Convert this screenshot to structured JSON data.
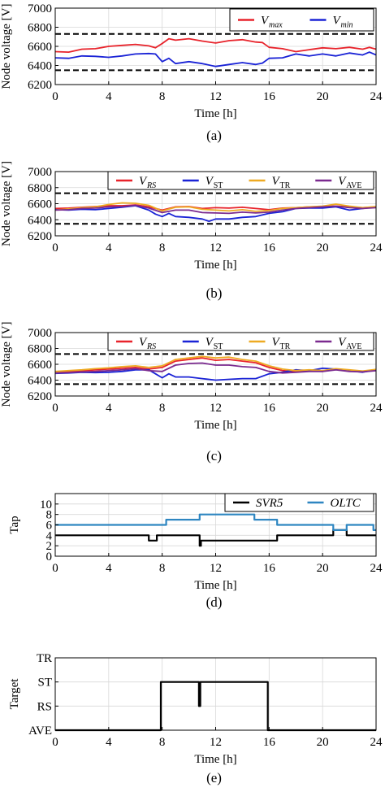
{
  "chart_data": [
    {
      "type": "line",
      "panel_label": "(a)",
      "xlabel": "Time [h]",
      "ylabel": "Node voltage [V]",
      "xlim": [
        0,
        24
      ],
      "ylim": [
        6200,
        7000
      ],
      "xticks": [
        "0",
        "4",
        "8",
        "12",
        "16",
        "20",
        "24"
      ],
      "yticks": [
        "6200",
        "6400",
        "6600",
        "6800",
        "7000"
      ],
      "reference_lines": [
        6730,
        6350
      ],
      "legend_placement": "top-right",
      "series": [
        {
          "name": "V",
          "subscript": "max",
          "color": "#e8232b",
          "x": [
            0,
            1,
            2,
            3,
            4,
            5,
            6,
            7,
            7.5,
            8,
            8.5,
            9,
            10,
            11,
            12,
            13,
            14,
            15,
            15.5,
            16,
            17,
            18,
            19,
            20,
            21,
            22,
            23,
            23.5,
            24
          ],
          "y": [
            6545,
            6540,
            6570,
            6575,
            6600,
            6610,
            6620,
            6605,
            6585,
            6630,
            6680,
            6665,
            6680,
            6655,
            6635,
            6660,
            6670,
            6645,
            6640,
            6590,
            6575,
            6545,
            6565,
            6585,
            6575,
            6590,
            6570,
            6590,
            6570
          ]
        },
        {
          "name": "V",
          "subscript": "min",
          "color": "#1a23d6",
          "x": [
            0,
            1,
            2,
            3,
            4,
            5,
            6,
            7,
            7.5,
            8,
            8.5,
            9,
            10,
            11,
            12,
            13,
            14,
            15,
            15.5,
            16,
            17,
            18,
            19,
            20,
            21,
            22,
            23,
            23.5,
            24
          ],
          "y": [
            6480,
            6475,
            6500,
            6495,
            6485,
            6500,
            6520,
            6525,
            6520,
            6440,
            6475,
            6420,
            6440,
            6420,
            6390,
            6410,
            6430,
            6410,
            6425,
            6475,
            6480,
            6520,
            6500,
            6520,
            6500,
            6530,
            6510,
            6540,
            6510
          ]
        }
      ]
    },
    {
      "type": "line",
      "panel_label": "(b)",
      "xlabel": "Time [h]",
      "ylabel": "Node voltage [V]",
      "xlim": [
        0,
        24
      ],
      "ylim": [
        6200,
        7000
      ],
      "xticks": [
        "0",
        "4",
        "8",
        "12",
        "16",
        "20",
        "24"
      ],
      "yticks": [
        "6200",
        "6400",
        "6600",
        "6800",
        "7000"
      ],
      "reference_lines": [
        6730,
        6350
      ],
      "legend_placement": "top",
      "series": [
        {
          "name": "V",
          "subscript": "RS",
          "color": "#e8232b",
          "x": [
            0,
            1,
            2,
            3,
            4,
            5,
            6,
            7,
            8,
            9,
            10,
            11,
            12,
            13,
            14,
            15,
            16,
            17,
            18,
            19,
            20,
            21,
            22,
            23,
            24
          ],
          "y": [
            6540,
            6545,
            6555,
            6565,
            6575,
            6575,
            6585,
            6560,
            6520,
            6560,
            6565,
            6540,
            6550,
            6545,
            6555,
            6540,
            6525,
            6545,
            6550,
            6560,
            6565,
            6570,
            6560,
            6550,
            6560
          ]
        },
        {
          "name": "V",
          "subscript": "ST",
          "color": "#1a23d6",
          "x": [
            0,
            1,
            2,
            3,
            4,
            5,
            6,
            7,
            7.5,
            8,
            8.5,
            9,
            10,
            11,
            11.5,
            12,
            13,
            14,
            15,
            16,
            17,
            18,
            19,
            20,
            21,
            22,
            23,
            24
          ],
          "y": [
            6525,
            6520,
            6530,
            6525,
            6540,
            6555,
            6575,
            6520,
            6470,
            6440,
            6480,
            6440,
            6430,
            6410,
            6380,
            6410,
            6410,
            6430,
            6440,
            6480,
            6500,
            6540,
            6545,
            6545,
            6560,
            6520,
            6540,
            6560
          ]
        },
        {
          "name": "V",
          "subscript": "TR",
          "color": "#eeaa22",
          "x": [
            0,
            1,
            2,
            3,
            4,
            5,
            6,
            7,
            8,
            9,
            10,
            11,
            12,
            13,
            14,
            15,
            16,
            17,
            18,
            19,
            20,
            21,
            22,
            23,
            24
          ],
          "y": [
            6520,
            6535,
            6550,
            6560,
            6590,
            6610,
            6605,
            6580,
            6510,
            6555,
            6560,
            6530,
            6520,
            6510,
            6525,
            6505,
            6515,
            6540,
            6550,
            6560,
            6570,
            6595,
            6570,
            6550,
            6565
          ]
        },
        {
          "name": "V",
          "subscript": "AVE",
          "color": "#7b2a8f",
          "x": [
            0,
            1,
            2,
            3,
            4,
            5,
            6,
            7,
            8,
            9,
            10,
            11,
            12,
            13,
            14,
            15,
            16,
            17,
            18,
            19,
            20,
            21,
            22,
            23,
            24
          ],
          "y": [
            6520,
            6525,
            6540,
            6545,
            6560,
            6565,
            6580,
            6545,
            6490,
            6520,
            6520,
            6490,
            6485,
            6480,
            6495,
            6485,
            6495,
            6520,
            6540,
            6550,
            6560,
            6570,
            6550,
            6540,
            6550
          ]
        }
      ]
    },
    {
      "type": "line",
      "panel_label": "(c)",
      "xlabel": "Time [h]",
      "ylabel": "Node voltage [V]",
      "xlim": [
        0,
        24
      ],
      "ylim": [
        6200,
        7000
      ],
      "xticks": [
        "0",
        "4",
        "8",
        "12",
        "16",
        "20",
        "24"
      ],
      "yticks": [
        "6200",
        "6400",
        "6600",
        "6800",
        "7000"
      ],
      "reference_lines": [
        6730,
        6350
      ],
      "legend_placement": "top",
      "series": [
        {
          "name": "V",
          "subscript": "RS",
          "color": "#e8232b",
          "x": [
            0,
            1,
            2,
            3,
            4,
            5,
            6,
            7,
            8,
            9,
            10,
            11,
            12,
            13,
            14,
            15,
            16,
            17,
            18,
            19,
            20,
            21,
            22,
            23,
            24
          ],
          "y": [
            6500,
            6505,
            6520,
            6530,
            6540,
            6550,
            6560,
            6540,
            6560,
            6640,
            6660,
            6680,
            6650,
            6660,
            6640,
            6620,
            6560,
            6520,
            6510,
            6520,
            6510,
            6540,
            6520,
            6510,
            6530
          ]
        },
        {
          "name": "V",
          "subscript": "ST",
          "color": "#1a23d6",
          "x": [
            0,
            1,
            2,
            3,
            4,
            5,
            6,
            7,
            7.5,
            8,
            8.5,
            9,
            10,
            11,
            12,
            13,
            14,
            15,
            16,
            17,
            18,
            19,
            20,
            21,
            22,
            23,
            24
          ],
          "y": [
            6485,
            6490,
            6500,
            6495,
            6500,
            6510,
            6530,
            6530,
            6480,
            6430,
            6480,
            6440,
            6440,
            6420,
            6400,
            6410,
            6420,
            6420,
            6480,
            6500,
            6530,
            6520,
            6550,
            6540,
            6520,
            6500,
            6530
          ]
        },
        {
          "name": "V",
          "subscript": "TR",
          "color": "#eeaa22",
          "x": [
            0,
            1,
            2,
            3,
            4,
            5,
            6,
            7,
            8,
            9,
            10,
            11,
            12,
            13,
            14,
            15,
            16,
            17,
            18,
            19,
            20,
            21,
            22,
            23,
            24
          ],
          "y": [
            6510,
            6520,
            6530,
            6545,
            6555,
            6570,
            6580,
            6560,
            6580,
            6660,
            6680,
            6700,
            6680,
            6690,
            6660,
            6640,
            6580,
            6540,
            6520,
            6530,
            6520,
            6545,
            6530,
            6515,
            6535
          ]
        },
        {
          "name": "V",
          "subscript": "AVE",
          "color": "#7b2a8f",
          "x": [
            0,
            1,
            2,
            3,
            4,
            5,
            6,
            7,
            8,
            9,
            10,
            11,
            12,
            13,
            14,
            15,
            16,
            17,
            18,
            19,
            20,
            21,
            22,
            23,
            24
          ],
          "y": [
            6490,
            6495,
            6505,
            6510,
            6520,
            6530,
            6545,
            6520,
            6510,
            6590,
            6610,
            6615,
            6590,
            6590,
            6570,
            6560,
            6510,
            6490,
            6500,
            6510,
            6510,
            6530,
            6510,
            6505,
            6520
          ]
        }
      ]
    },
    {
      "type": "line",
      "panel_label": "(d)",
      "xlabel": "Time [h]",
      "ylabel": "Tap",
      "xlim": [
        0,
        24
      ],
      "ylim": [
        0,
        12
      ],
      "xticks": [
        "0",
        "4",
        "8",
        "12",
        "16",
        "20",
        "24"
      ],
      "yticks": [
        "0",
        "2",
        "4",
        "6",
        "8",
        "10"
      ],
      "legend_placement": "top-right",
      "series": [
        {
          "name": "SVR5",
          "color": "#000000",
          "step": true,
          "x": [
            0,
            7.0,
            7.0,
            7.6,
            7.6,
            10.8,
            10.8,
            10.9,
            10.9,
            16.6,
            16.6,
            20.8,
            20.8,
            21.8,
            21.8,
            24
          ],
          "y": [
            4,
            4,
            3,
            3,
            4,
            4,
            2,
            2,
            3,
            3,
            4,
            4,
            5,
            5,
            4,
            4
          ]
        },
        {
          "name": "OLTC",
          "color": "#2e86c1",
          "step": true,
          "x": [
            0,
            8.3,
            8.3,
            10.8,
            10.8,
            14.9,
            14.9,
            16.6,
            16.6,
            20.8,
            20.8,
            21.8,
            21.8,
            23.8,
            23.8,
            24
          ],
          "y": [
            6,
            6,
            7,
            7,
            8,
            8,
            7,
            7,
            6,
            6,
            5,
            5,
            6,
            6,
            5,
            5
          ]
        }
      ]
    },
    {
      "type": "line",
      "panel_label": "(e)",
      "xlabel": "Time [h]",
      "ylabel": "Target",
      "xlim": [
        0,
        24
      ],
      "ylim": [
        "AVE",
        "TR"
      ],
      "xticks": [
        "0",
        "4",
        "8",
        "12",
        "16",
        "20",
        "24"
      ],
      "yticks": [
        "AVE",
        "RS",
        "ST",
        "TR"
      ],
      "series": [
        {
          "color": "#000000",
          "step": true,
          "x": [
            0,
            7.9,
            7.9,
            10.75,
            10.75,
            10.85,
            10.85,
            15.9,
            15.9,
            24
          ],
          "y": [
            "AVE",
            "AVE",
            "ST",
            "ST",
            "RS",
            "RS",
            "ST",
            "ST",
            "AVE",
            "AVE"
          ]
        }
      ]
    }
  ]
}
